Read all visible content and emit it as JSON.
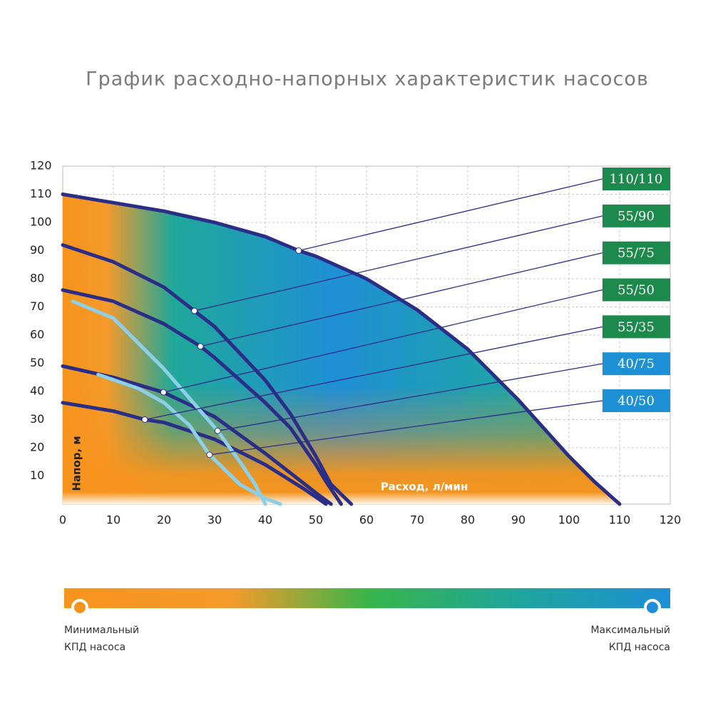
{
  "chart_data": {
    "type": "line",
    "title": "График расходно-напорных характеристик насосов",
    "x_label": "Расход, л/мин",
    "y_label": "Напор, м",
    "xlim": [
      0,
      120
    ],
    "ylim": [
      0,
      120
    ],
    "xticks": [
      0,
      10,
      20,
      30,
      40,
      50,
      60,
      70,
      80,
      90,
      100,
      110,
      120
    ],
    "yticks": [
      10,
      20,
      30,
      40,
      50,
      60,
      70,
      80,
      90,
      100,
      110,
      120
    ],
    "grid": true,
    "series": [
      {
        "name": "110/110",
        "color": "#2b2e86",
        "label_color": "#1b8a4c",
        "x": [
          0,
          10,
          20,
          30,
          40,
          46.6,
          50,
          60,
          70,
          80,
          90,
          100,
          105,
          110
        ],
        "values": [
          110,
          107,
          104,
          100,
          95,
          90,
          88,
          80,
          69,
          55,
          37,
          17,
          8,
          0
        ],
        "label_point": [
          46.6,
          90
        ]
      },
      {
        "name": "55/90",
        "color": "#2b2e86",
        "label_color": "#1b8a4c",
        "x": [
          0,
          10,
          20,
          26,
          30,
          40,
          45,
          50,
          53,
          57
        ],
        "values": [
          92,
          86,
          77,
          68.6,
          63,
          44,
          32,
          17,
          7,
          0
        ],
        "label_point": [
          26,
          68.6
        ]
      },
      {
        "name": "55/75",
        "color": "#2b2e86",
        "label_color": "#1b8a4c",
        "x": [
          0,
          10,
          20,
          27.2,
          30,
          40,
          45,
          50,
          52,
          55
        ],
        "values": [
          76,
          72,
          64,
          56,
          52,
          36,
          27,
          14,
          8,
          0
        ],
        "label_point": [
          27.2,
          56
        ]
      },
      {
        "name": "55/50",
        "color": "#2b2e86",
        "label_color": "#1b8a4c",
        "x": [
          0,
          10,
          19.9,
          30,
          40,
          45,
          50,
          53
        ],
        "values": [
          49,
          45,
          39.7,
          31,
          18,
          11,
          4,
          0
        ],
        "label_point": [
          19.9,
          39.7
        ]
      },
      {
        "name": "55/35",
        "color": "#2b2e86",
        "label_color": "#1b8a4c",
        "x": [
          0,
          10,
          16.2,
          20,
          30,
          40,
          48,
          52
        ],
        "values": [
          36,
          33,
          30,
          29,
          23,
          14,
          5,
          0
        ],
        "label_point": [
          16.2,
          30
        ]
      },
      {
        "name": "40/75",
        "color": "#8ecfe8",
        "label_color": "#1e90d6",
        "x": [
          2,
          10,
          20,
          30.6,
          35,
          38,
          40
        ],
        "values": [
          72,
          66,
          48,
          26,
          15,
          7,
          0
        ],
        "label_point": [
          30.6,
          26
        ]
      },
      {
        "name": "40/50",
        "color": "#8ecfe8",
        "label_color": "#1e90d6",
        "x": [
          7,
          15,
          20,
          25,
          29,
          35,
          40,
          43
        ],
        "values": [
          46,
          41,
          36,
          28,
          17.5,
          7,
          2,
          0
        ],
        "label_point": [
          29,
          17.5
        ]
      }
    ],
    "efficiency_scale": {
      "min_label": [
        "Минимальный",
        "КПД насоса"
      ],
      "max_label": [
        "Максимальный",
        "КПД насоса"
      ]
    }
  }
}
